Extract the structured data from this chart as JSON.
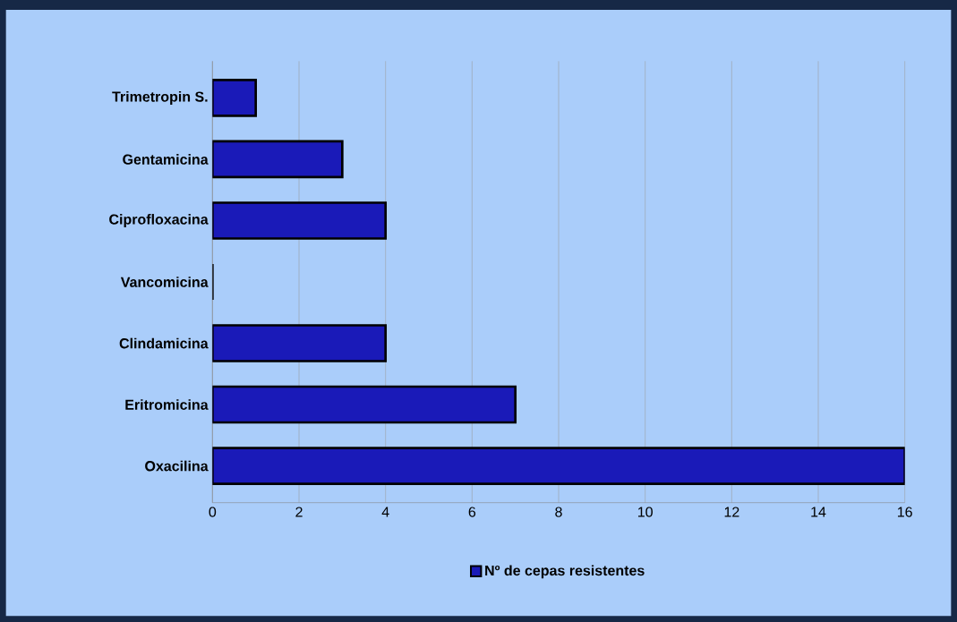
{
  "chart_data": {
    "type": "bar",
    "orientation": "horizontal",
    "categories": [
      "Trimetropin S.",
      "Gentamicina",
      "Ciprofloxacina",
      "Vancomicina",
      "Clindamicina",
      "Eritromicina",
      "Oxacilina"
    ],
    "series": [
      {
        "name": "Nº de cepas resistentes",
        "color": "#1a1ab8",
        "values": [
          1,
          3,
          4,
          0,
          4,
          7,
          16
        ]
      }
    ],
    "xlim": [
      0,
      16
    ],
    "xticks": [
      0,
      2,
      4,
      6,
      8,
      10,
      12,
      14,
      16
    ],
    "grid": "x",
    "legend": "bottom"
  }
}
